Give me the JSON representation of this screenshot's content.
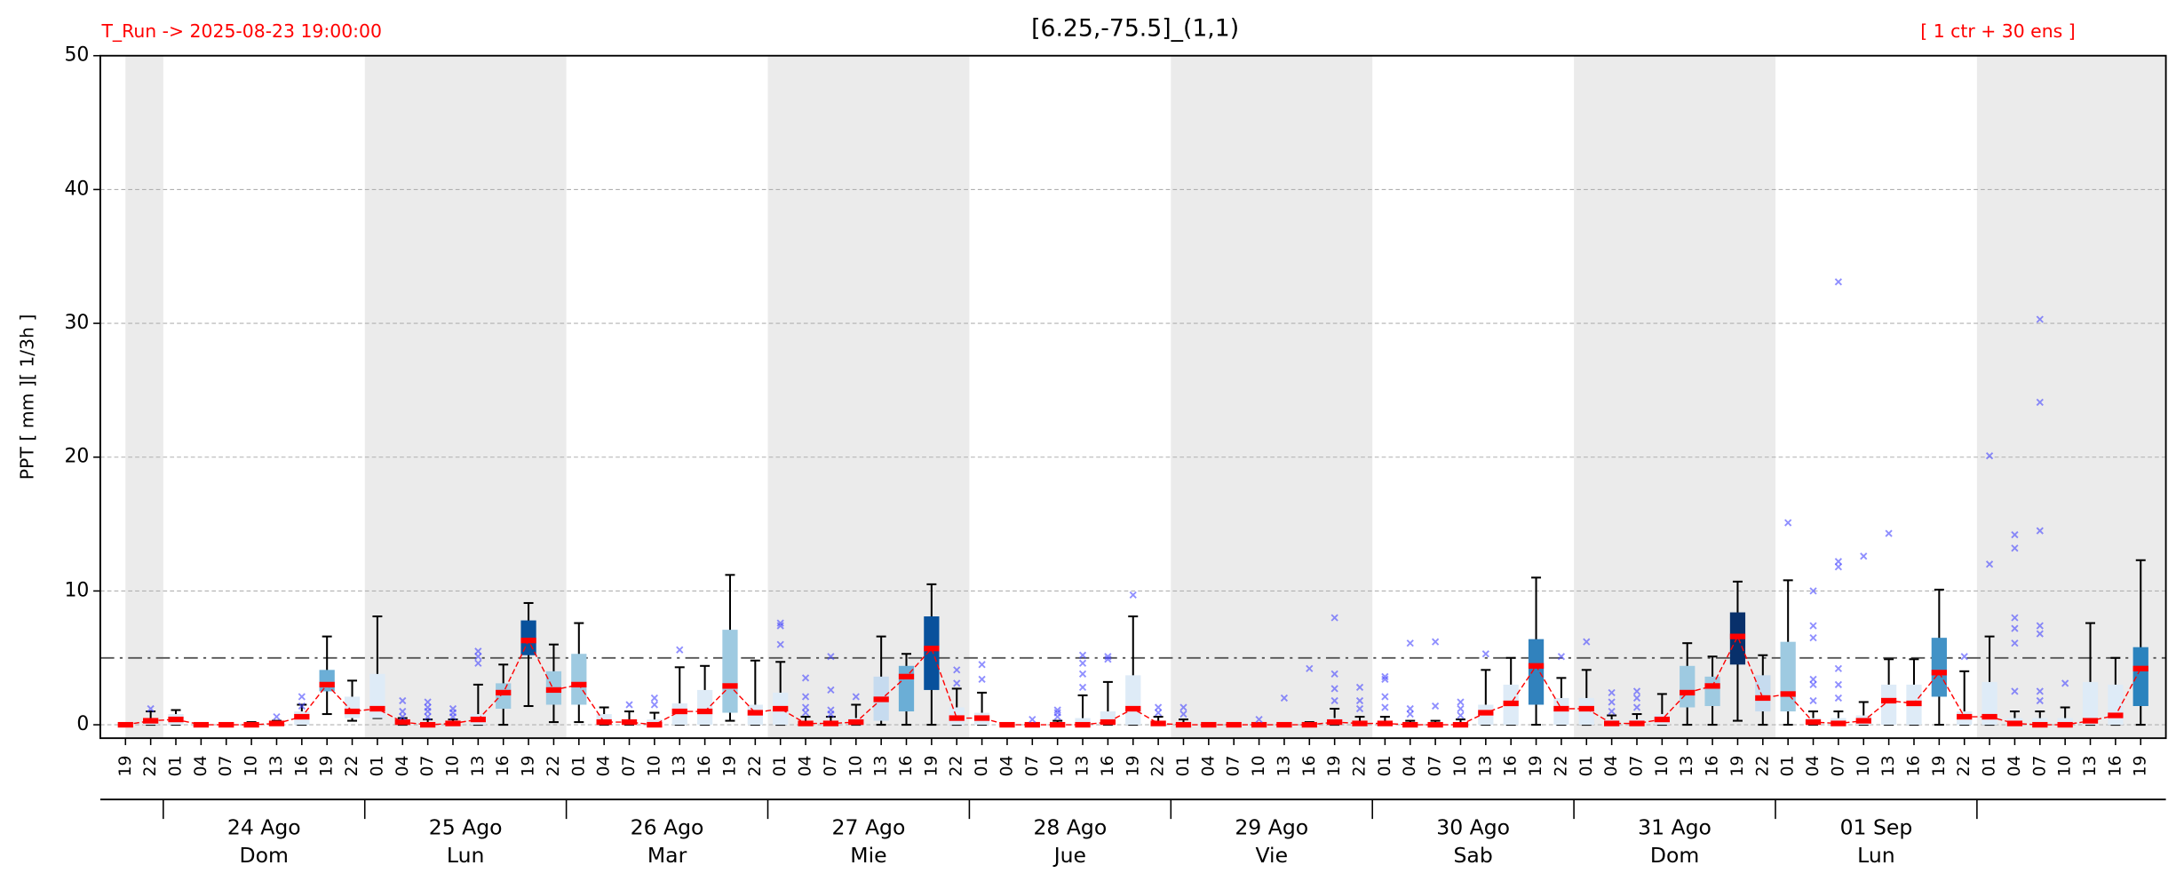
{
  "chart_data": {
    "type": "box",
    "title": "[6.25,-75.5]_(1,1)",
    "run_label": "T_Run -> 2025-08-23  19:00:00",
    "members_label": "[ 1 ctr + 30 ens ]",
    "y_label": "PPT  [ mm ][ 1/3h ]",
    "ylim": [
      -1,
      50
    ],
    "yticks": [
      0,
      10,
      20,
      30,
      40,
      50
    ],
    "grid": true,
    "threshold": 5,
    "categories": [
      "19",
      "22",
      "01",
      "04",
      "07",
      "10",
      "13",
      "16",
      "19",
      "22",
      "01",
      "04",
      "07",
      "10",
      "13",
      "16",
      "19",
      "22",
      "01",
      "04",
      "07",
      "10",
      "13",
      "16",
      "19",
      "22",
      "01",
      "04",
      "07",
      "10",
      "13",
      "16",
      "19",
      "22",
      "01",
      "04",
      "07",
      "10",
      "13",
      "16",
      "19",
      "22",
      "01",
      "04",
      "07",
      "10",
      "13",
      "16",
      "19",
      "22",
      "01",
      "04",
      "07",
      "10",
      "13",
      "16",
      "19",
      "22",
      "01",
      "04",
      "07",
      "10",
      "13",
      "16",
      "19",
      "22",
      "01",
      "04",
      "07",
      "10",
      "13",
      "16",
      "19",
      "22",
      "01",
      "04",
      "07",
      "10",
      "13",
      "16",
      "19"
    ],
    "day_labels": [
      null,
      "24 Ago",
      "25 Ago",
      "26 Ago",
      "27 Ago",
      "28 Ago",
      "29 Ago",
      "30 Ago",
      "31 Ago",
      "01 Sep",
      null
    ],
    "weekdays": [
      null,
      "Dom",
      "Lun",
      "Mar",
      "Mie",
      "Jue",
      "Vie",
      "Sab",
      "Dom",
      "Lun",
      null
    ],
    "whisker_low": [
      0,
      0,
      0,
      0,
      0,
      0,
      0,
      0,
      0.8,
      0.3,
      0.5,
      0,
      0,
      0,
      0,
      0,
      1.4,
      0.2,
      0.2,
      0,
      0,
      0,
      0,
      0,
      0.3,
      0,
      0,
      0,
      0,
      0,
      0,
      0,
      0,
      0,
      0,
      0,
      0,
      0,
      0,
      0,
      0,
      0,
      0,
      0,
      0,
      0,
      0,
      0,
      0,
      0,
      0,
      0,
      0,
      0,
      0,
      0,
      0,
      0,
      0,
      0,
      0,
      0,
      0,
      0,
      0.3,
      0,
      0,
      0,
      0,
      0,
      0,
      0,
      0,
      0,
      0,
      0,
      0,
      0,
      0,
      0,
      0
    ],
    "q1": [
      0,
      0,
      0,
      0,
      0,
      0,
      0,
      0,
      2.5,
      0.5,
      0.5,
      0,
      0,
      0,
      0,
      1.2,
      5.2,
      1.5,
      1.5,
      0,
      0,
      0,
      0,
      0,
      0.9,
      0,
      0,
      0,
      0,
      0,
      0.3,
      1.0,
      2.6,
      0,
      0,
      0,
      0,
      0,
      0,
      0,
      0,
      0,
      0,
      0,
      0,
      0,
      0,
      0,
      0,
      0,
      0,
      0,
      0,
      0,
      0,
      0,
      1.5,
      0,
      0,
      0,
      0,
      0,
      1.3,
      1.4,
      4.5,
      1.0,
      1.0,
      0,
      0,
      0,
      0,
      0,
      2.1,
      0,
      0,
      0,
      0,
      0,
      0,
      0,
      1.4
    ],
    "median": [
      0,
      0.3,
      0.4,
      0,
      0,
      0,
      0.1,
      0.6,
      3.0,
      1.0,
      1.2,
      0.2,
      0,
      0.1,
      0.4,
      2.4,
      6.3,
      2.6,
      3.0,
      0.2,
      0.2,
      0,
      1.0,
      1.0,
      2.9,
      0.9,
      1.2,
      0.1,
      0.1,
      0.2,
      1.9,
      3.6,
      5.7,
      0.5,
      0.5,
      0,
      0,
      0,
      0,
      0.2,
      1.2,
      0.1,
      0,
      0,
      0,
      0,
      0,
      0,
      0.2,
      0.1,
      0.1,
      0,
      0,
      0,
      0.9,
      1.6,
      4.4,
      1.2,
      1.2,
      0.1,
      0.1,
      0.4,
      2.4,
      2.9,
      6.6,
      2.0,
      2.3,
      0.2,
      0.1,
      0.3,
      1.8,
      1.6,
      3.9,
      0.6,
      0.6,
      0.1,
      0,
      0,
      0.3,
      0.7,
      4.2
    ],
    "q3": [
      0,
      0.5,
      0.8,
      0,
      0,
      0,
      0.2,
      1.0,
      4.1,
      2.1,
      3.8,
      0.4,
      0.2,
      0.2,
      0.8,
      3.1,
      7.8,
      4.0,
      5.3,
      0.8,
      0.4,
      0.4,
      1.6,
      2.6,
      7.1,
      1.5,
      2.4,
      0.3,
      0.3,
      0.5,
      3.6,
      4.4,
      8.1,
      1.3,
      0.9,
      0,
      0,
      0.1,
      0.5,
      1.0,
      3.7,
      0.3,
      0.2,
      0,
      0,
      0,
      0,
      0.1,
      0.5,
      0.3,
      0.3,
      0.1,
      0.1,
      0.2,
      1.5,
      3.0,
      6.4,
      2.0,
      2.0,
      0.4,
      0.4,
      0.8,
      4.4,
      3.6,
      8.4,
      3.7,
      6.2,
      0.5,
      0.5,
      0.7,
      3.0,
      3.0,
      6.5,
      1.0,
      3.2,
      0.5,
      0.5,
      0.5,
      3.2,
      3.0,
      5.8
    ],
    "whisker_high": [
      0,
      1.0,
      1.1,
      0,
      0,
      0.2,
      0.3,
      1.5,
      6.6,
      3.3,
      8.1,
      0.5,
      0.4,
      0.4,
      3.0,
      4.5,
      9.1,
      6.0,
      7.6,
      1.3,
      1.0,
      0.9,
      4.3,
      4.4,
      11.2,
      4.8,
      4.7,
      0.6,
      0.6,
      1.5,
      6.6,
      5.3,
      10.5,
      2.7,
      2.4,
      0,
      0.1,
      0.3,
      2.2,
      3.2,
      8.1,
      0.6,
      0.4,
      0,
      0,
      0.1,
      0,
      0.2,
      1.2,
      0.6,
      0.6,
      0.3,
      0.3,
      0.4,
      4.1,
      5.0,
      11.0,
      3.5,
      4.1,
      0.7,
      0.8,
      2.3,
      6.1,
      5.1,
      10.7,
      5.2,
      10.8,
      1.0,
      1.0,
      1.7,
      4.9,
      4.9,
      10.1,
      4.0,
      6.6,
      1.0,
      1.0,
      1.3,
      7.6,
      5.0,
      12.3
    ],
    "box_colors": [
      "#deebf7",
      "#deebf7",
      "#deebf7",
      "#deebf7",
      "#deebf7",
      "#deebf7",
      "#deebf7",
      "#deebf7",
      "#6baed6",
      "#deebf7",
      "#deebf7",
      "#deebf7",
      "#deebf7",
      "#deebf7",
      "#deebf7",
      "#9ecae1",
      "#08519c",
      "#9ecae1",
      "#9ecae1",
      "#deebf7",
      "#deebf7",
      "#deebf7",
      "#deebf7",
      "#deebf7",
      "#9ecae1",
      "#deebf7",
      "#deebf7",
      "#deebf7",
      "#deebf7",
      "#deebf7",
      "#c6dbef",
      "#6baed6",
      "#08519c",
      "#deebf7",
      "#deebf7",
      "#deebf7",
      "#deebf7",
      "#deebf7",
      "#deebf7",
      "#deebf7",
      "#deebf7",
      "#deebf7",
      "#deebf7",
      "#deebf7",
      "#deebf7",
      "#deebf7",
      "#deebf7",
      "#deebf7",
      "#deebf7",
      "#deebf7",
      "#deebf7",
      "#deebf7",
      "#deebf7",
      "#deebf7",
      "#deebf7",
      "#deebf7",
      "#3182bd",
      "#deebf7",
      "#deebf7",
      "#deebf7",
      "#deebf7",
      "#deebf7",
      "#9ecae1",
      "#9ecae1",
      "#08306b",
      "#c6dbef",
      "#9ecae1",
      "#deebf7",
      "#deebf7",
      "#deebf7",
      "#deebf7",
      "#deebf7",
      "#4292c6",
      "#deebf7",
      "#deebf7",
      "#deebf7",
      "#deebf7",
      "#deebf7",
      "#deebf7",
      "#deebf7",
      "#2b83be"
    ],
    "outliers": [
      [],
      [
        1.2
      ],
      [],
      [],
      [],
      [],
      [
        0.6
      ],
      [
        2.1,
        1.4
      ],
      [],
      [],
      [],
      [
        1.8,
        1.0,
        0.6
      ],
      [
        1.7,
        1.3,
        1.0,
        0.6
      ],
      [
        1.2,
        0.9,
        0.6
      ],
      [
        5.5,
        5.1,
        4.6
      ],
      [],
      [],
      [],
      [],
      [],
      [
        1.5
      ],
      [
        2.0,
        1.5
      ],
      [
        5.6
      ],
      [],
      [],
      [],
      [
        7.6,
        7.4,
        6.0
      ],
      [
        3.5,
        2.1,
        1.3,
        0.9
      ],
      [
        5.1,
        2.6,
        1.1,
        0.8
      ],
      [
        2.1
      ],
      [],
      [],
      [],
      [
        4.1,
        3.1
      ],
      [
        4.5,
        3.4
      ],
      [],
      [
        0.4
      ],
      [
        1.1,
        0.9,
        0.6
      ],
      [
        5.2,
        4.6,
        3.8,
        2.8
      ],
      [
        5.1,
        4.9
      ],
      [
        9.7
      ],
      [
        1.3,
        0.9
      ],
      [
        1.3,
        0.8
      ],
      [],
      [],
      [
        0.4
      ],
      [
        2.0
      ],
      [
        4.2
      ],
      [
        8.0,
        3.8,
        2.7,
        1.8
      ],
      [
        2.8,
        1.8,
        1.2
      ],
      [
        3.6,
        3.4,
        2.1,
        1.3
      ],
      [
        6.1,
        1.2,
        0.8
      ],
      [
        6.2,
        1.4
      ],
      [
        1.7,
        1.2,
        0.7
      ],
      [
        5.3
      ],
      [],
      [],
      [
        5.1
      ],
      [
        6.2
      ],
      [
        2.4,
        1.7,
        1.0
      ],
      [
        2.5,
        2.0,
        1.3
      ],
      [],
      [],
      [],
      [],
      [],
      [
        15.1
      ],
      [
        10.0,
        7.4,
        6.5,
        3.4,
        3.0,
        1.8
      ],
      [
        33.1,
        12.2,
        11.8,
        4.2,
        3.0,
        2.0
      ],
      [
        12.6
      ],
      [
        14.3
      ],
      [],
      [],
      [
        5.1
      ],
      [
        20.1,
        12.0
      ],
      [
        14.2,
        13.2,
        8.0,
        7.2,
        6.1,
        2.5
      ],
      [
        30.3,
        24.1,
        14.5,
        7.4,
        6.8,
        2.5,
        1.8
      ],
      [
        3.1
      ],
      [],
      [],
      []
    ],
    "median_color": "#ff0000",
    "outlier_color": "#4444ff",
    "shade_color": "#ebebeb"
  }
}
